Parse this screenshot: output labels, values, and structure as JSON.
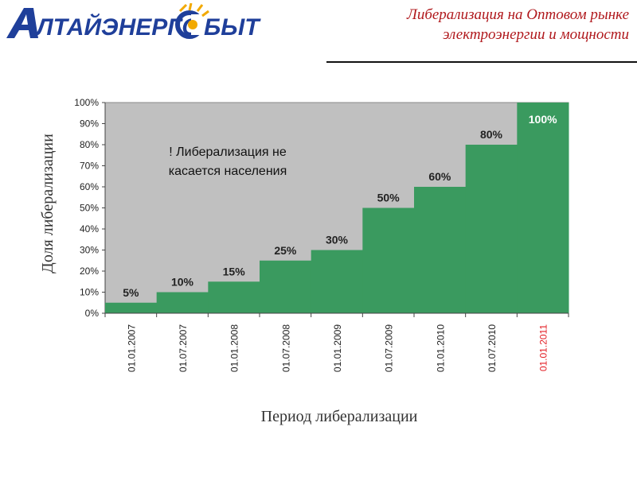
{
  "header": {
    "logo_text": "АЛТАЙЭНЕРГОСБЫТ",
    "title_line1": "Либерализация на Оптовом рынке",
    "title_line2": "электроэнергии и мощности"
  },
  "colors": {
    "plot_background": "#c0c0c0",
    "series_fill": "#3a9a5f",
    "accent_date": "#e31e24",
    "title_color": "#b0181c",
    "logo_blue": "#1f3f9a",
    "logo_sun": "#f2a900"
  },
  "chart_data": {
    "type": "area",
    "step": true,
    "categories": [
      "01.01.2007",
      "01.07.2007",
      "01.01.2008",
      "01.07.2008",
      "01.01.2009",
      "01.07.2009",
      "01.01.2010",
      "01.07.2010",
      "01.01.2011"
    ],
    "highlighted_category": "01.01.2011",
    "series": [
      {
        "values": [
          5,
          10,
          15,
          25,
          30,
          50,
          60,
          80,
          100
        ]
      }
    ],
    "data_labels": [
      "5%",
      "10%",
      "15%",
      "25%",
      "30%",
      "50%",
      "60%",
      "80%",
      "100%"
    ],
    "xlabel": "Период либерализации",
    "ylabel": "Доля либерализации",
    "ylim": [
      0,
      100
    ],
    "yticks": [
      "0%",
      "10%",
      "20%",
      "30%",
      "40%",
      "50%",
      "60%",
      "70%",
      "80%",
      "90%",
      "100%"
    ],
    "annotation": [
      "! Либерализация не",
      "касается населения"
    ],
    "grid": false
  }
}
